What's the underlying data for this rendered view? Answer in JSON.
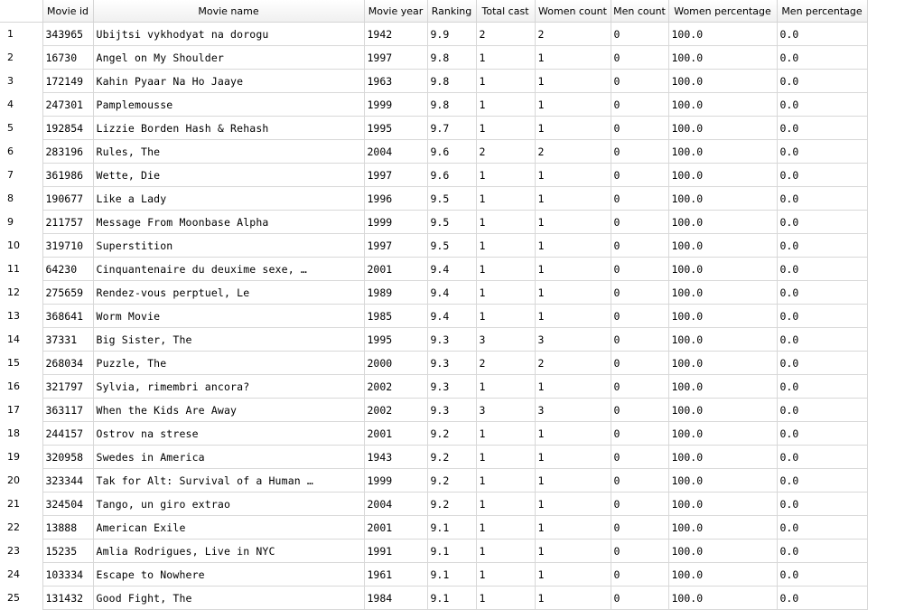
{
  "table": {
    "columns": [
      "Movie id",
      "Movie name",
      "Movie year",
      "Ranking",
      "Total cast",
      "Women count",
      "Men count",
      "Women percentage",
      "Men percentage"
    ],
    "rows": [
      {
        "n": "1",
        "id": "343965",
        "name": "Ubijtsi vykhodyat na dorogu",
        "year": "1942",
        "rank": "9.9",
        "cast": "2",
        "women": "2",
        "men": "0",
        "wpct": "100.0",
        "mpct": "0.0"
      },
      {
        "n": "2",
        "id": "16730",
        "name": "Angel on My Shoulder",
        "year": "1997",
        "rank": "9.8",
        "cast": "1",
        "women": "1",
        "men": "0",
        "wpct": "100.0",
        "mpct": "0.0"
      },
      {
        "n": "3",
        "id": "172149",
        "name": "Kahin Pyaar Na Ho Jaaye",
        "year": "1963",
        "rank": "9.8",
        "cast": "1",
        "women": "1",
        "men": "0",
        "wpct": "100.0",
        "mpct": "0.0"
      },
      {
        "n": "4",
        "id": "247301",
        "name": "Pamplemousse",
        "year": "1999",
        "rank": "9.8",
        "cast": "1",
        "women": "1",
        "men": "0",
        "wpct": "100.0",
        "mpct": "0.0"
      },
      {
        "n": "5",
        "id": "192854",
        "name": "Lizzie Borden Hash & Rehash",
        "year": "1995",
        "rank": "9.7",
        "cast": "1",
        "women": "1",
        "men": "0",
        "wpct": "100.0",
        "mpct": "0.0"
      },
      {
        "n": "6",
        "id": "283196",
        "name": "Rules, The",
        "year": "2004",
        "rank": "9.6",
        "cast": "2",
        "women": "2",
        "men": "0",
        "wpct": "100.0",
        "mpct": "0.0"
      },
      {
        "n": "7",
        "id": "361986",
        "name": "Wette, Die",
        "year": "1997",
        "rank": "9.6",
        "cast": "1",
        "women": "1",
        "men": "0",
        "wpct": "100.0",
        "mpct": "0.0"
      },
      {
        "n": "8",
        "id": "190677",
        "name": "Like a Lady",
        "year": "1996",
        "rank": "9.5",
        "cast": "1",
        "women": "1",
        "men": "0",
        "wpct": "100.0",
        "mpct": "0.0"
      },
      {
        "n": "9",
        "id": "211757",
        "name": "Message From Moonbase Alpha",
        "year": "1999",
        "rank": "9.5",
        "cast": "1",
        "women": "1",
        "men": "0",
        "wpct": "100.0",
        "mpct": "0.0"
      },
      {
        "n": "10",
        "id": "319710",
        "name": "Superstition",
        "year": "1997",
        "rank": "9.5",
        "cast": "1",
        "women": "1",
        "men": "0",
        "wpct": "100.0",
        "mpct": "0.0"
      },
      {
        "n": "11",
        "id": "64230",
        "name": "Cinquantenaire du deuxime sexe, …",
        "year": "2001",
        "rank": "9.4",
        "cast": "1",
        "women": "1",
        "men": "0",
        "wpct": "100.0",
        "mpct": "0.0"
      },
      {
        "n": "12",
        "id": "275659",
        "name": "Rendez-vous perptuel, Le",
        "year": "1989",
        "rank": "9.4",
        "cast": "1",
        "women": "1",
        "men": "0",
        "wpct": "100.0",
        "mpct": "0.0"
      },
      {
        "n": "13",
        "id": "368641",
        "name": "Worm Movie",
        "year": "1985",
        "rank": "9.4",
        "cast": "1",
        "women": "1",
        "men": "0",
        "wpct": "100.0",
        "mpct": "0.0"
      },
      {
        "n": "14",
        "id": "37331",
        "name": "Big Sister, The",
        "year": "1995",
        "rank": "9.3",
        "cast": "3",
        "women": "3",
        "men": "0",
        "wpct": "100.0",
        "mpct": "0.0"
      },
      {
        "n": "15",
        "id": "268034",
        "name": "Puzzle, The",
        "year": "2000",
        "rank": "9.3",
        "cast": "2",
        "women": "2",
        "men": "0",
        "wpct": "100.0",
        "mpct": "0.0"
      },
      {
        "n": "16",
        "id": "321797",
        "name": "Sylvia, rimembri ancora?",
        "year": "2002",
        "rank": "9.3",
        "cast": "1",
        "women": "1",
        "men": "0",
        "wpct": "100.0",
        "mpct": "0.0"
      },
      {
        "n": "17",
        "id": "363117",
        "name": "When the Kids Are Away",
        "year": "2002",
        "rank": "9.3",
        "cast": "3",
        "women": "3",
        "men": "0",
        "wpct": "100.0",
        "mpct": "0.0"
      },
      {
        "n": "18",
        "id": "244157",
        "name": "Ostrov na strese",
        "year": "2001",
        "rank": "9.2",
        "cast": "1",
        "women": "1",
        "men": "0",
        "wpct": "100.0",
        "mpct": "0.0"
      },
      {
        "n": "19",
        "id": "320958",
        "name": "Swedes in America",
        "year": "1943",
        "rank": "9.2",
        "cast": "1",
        "women": "1",
        "men": "0",
        "wpct": "100.0",
        "mpct": "0.0"
      },
      {
        "n": "20",
        "id": "323344",
        "name": "Tak for Alt: Survival of a Human …",
        "year": "1999",
        "rank": "9.2",
        "cast": "1",
        "women": "1",
        "men": "0",
        "wpct": "100.0",
        "mpct": "0.0"
      },
      {
        "n": "21",
        "id": "324504",
        "name": "Tango, un giro extrao",
        "year": "2004",
        "rank": "9.2",
        "cast": "1",
        "women": "1",
        "men": "0",
        "wpct": "100.0",
        "mpct": "0.0"
      },
      {
        "n": "22",
        "id": "13888",
        "name": "American Exile",
        "year": "2001",
        "rank": "9.1",
        "cast": "1",
        "women": "1",
        "men": "0",
        "wpct": "100.0",
        "mpct": "0.0"
      },
      {
        "n": "23",
        "id": "15235",
        "name": "Amlia Rodrigues, Live in NYC",
        "year": "1991",
        "rank": "9.1",
        "cast": "1",
        "women": "1",
        "men": "0",
        "wpct": "100.0",
        "mpct": "0.0"
      },
      {
        "n": "24",
        "id": "103334",
        "name": "Escape to Nowhere",
        "year": "1961",
        "rank": "9.1",
        "cast": "1",
        "women": "1",
        "men": "0",
        "wpct": "100.0",
        "mpct": "0.0"
      },
      {
        "n": "25",
        "id": "131432",
        "name": "Good Fight, The",
        "year": "1984",
        "rank": "9.1",
        "cast": "1",
        "women": "1",
        "men": "0",
        "wpct": "100.0",
        "mpct": "0.0"
      }
    ]
  }
}
